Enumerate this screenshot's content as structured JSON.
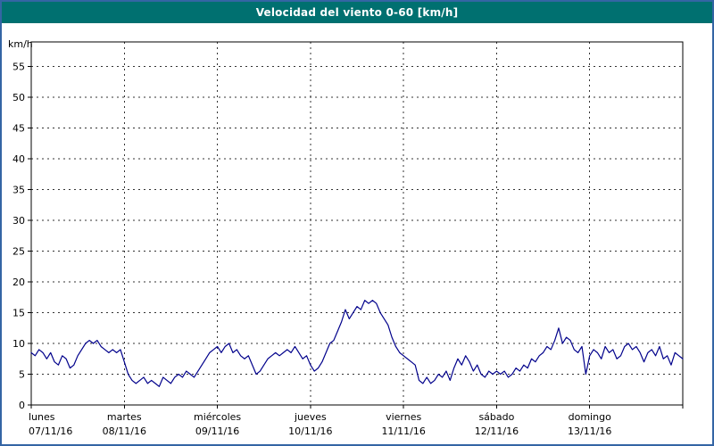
{
  "title_bar": {
    "title": "Velocidad del viento 0-60 [km/h]"
  },
  "colors": {
    "titlebar_bg": "#007070",
    "titlebar_text": "#ffffff",
    "page_border": "#3465a4",
    "line_color": "#00008b",
    "grid_color": "#333333",
    "axis_color": "#000000"
  },
  "chart_data": {
    "type": "line",
    "title": "Velocidad del viento 0-60 [km/h]",
    "xlabel": "",
    "ylabel": "km/h",
    "ylim": [
      0,
      59
    ],
    "ytick_step": 5,
    "ytick_max": 55,
    "grid": true,
    "legend": "none",
    "x_days": [
      {
        "name": "lunes",
        "date": "07/11/16"
      },
      {
        "name": "martes",
        "date": "08/11/16"
      },
      {
        "name": "miércoles",
        "date": "09/11/16"
      },
      {
        "name": "jueves",
        "date": "10/11/16"
      },
      {
        "name": "viernes",
        "date": "11/11/16"
      },
      {
        "name": "sábado",
        "date": "12/11/16"
      },
      {
        "name": "domingo",
        "date": "13/11/16"
      }
    ],
    "points_per_day": 24,
    "values": [
      8.5,
      8,
      9,
      8.5,
      7.5,
      8.5,
      7,
      6.5,
      8,
      7.5,
      6,
      6.5,
      8,
      9,
      10,
      10.5,
      10,
      10.5,
      9.5,
      9,
      8.5,
      9,
      8.5,
      9,
      7,
      5,
      4,
      3.5,
      4,
      4.5,
      3.5,
      4,
      3.5,
      3,
      4.5,
      4,
      3.5,
      4.5,
      5,
      4.5,
      5.5,
      5,
      4.5,
      5.5,
      6.5,
      7.5,
      8.5,
      9,
      9.5,
      8.5,
      9.5,
      10,
      8.5,
      9,
      8,
      7.5,
      8,
      6.5,
      5,
      5.5,
      6.5,
      7.5,
      8,
      8.5,
      8,
      8.5,
      9,
      8.5,
      9.5,
      8.5,
      7.5,
      8,
      6.5,
      5.5,
      6,
      7,
      8.5,
      10,
      10.5,
      12,
      13.5,
      15.5,
      14,
      15,
      16,
      15.5,
      17,
      16.5,
      17,
      16.5,
      15,
      14,
      13,
      11,
      9.5,
      8.5,
      8,
      7.5,
      7,
      6.5,
      4,
      3.5,
      4.5,
      3.5,
      4,
      5,
      4.5,
      5.5,
      4,
      6,
      7.5,
      6.5,
      8,
      7,
      5.5,
      6.5,
      5,
      4.5,
      5.5,
      5,
      5.5,
      5,
      5.5,
      4.5,
      5,
      6,
      5.5,
      6.5,
      6,
      7.5,
      7,
      8,
      8.5,
      9.5,
      9,
      10.5,
      12.5,
      10,
      11,
      10.5,
      9,
      8.5,
      9.5,
      5,
      8,
      9,
      8.5,
      7.5,
      9.5,
      8.5,
      9,
      7.5,
      8,
      9.5,
      10,
      9,
      9.5,
      8.5,
      7,
      8.5,
      9,
      8,
      9.5,
      7.5,
      8,
      6.5,
      8.5,
      8,
      7.5
    ]
  }
}
